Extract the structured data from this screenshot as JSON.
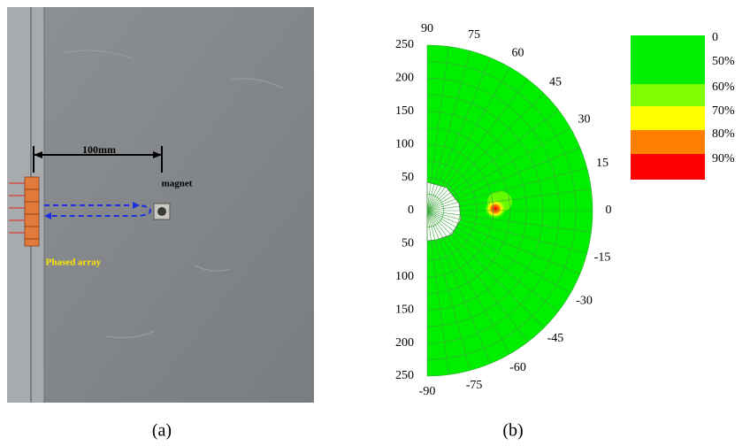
{
  "panel_a": {
    "dimension_label": "100mm",
    "magnet_label": "magnet",
    "array_label": "Phased array",
    "caption": "(a)"
  },
  "panel_b": {
    "angle_labels": [
      90,
      75,
      60,
      45,
      30,
      15,
      0,
      -15,
      -30,
      -45,
      -60,
      -75,
      -90
    ],
    "radius_labels": [
      250,
      200,
      150,
      100,
      50,
      0,
      50,
      100,
      150,
      200,
      250
    ],
    "legend_labels": [
      "0",
      "50%",
      "60%",
      "70%",
      "80%",
      "90%"
    ],
    "caption": "(b)"
  }
}
